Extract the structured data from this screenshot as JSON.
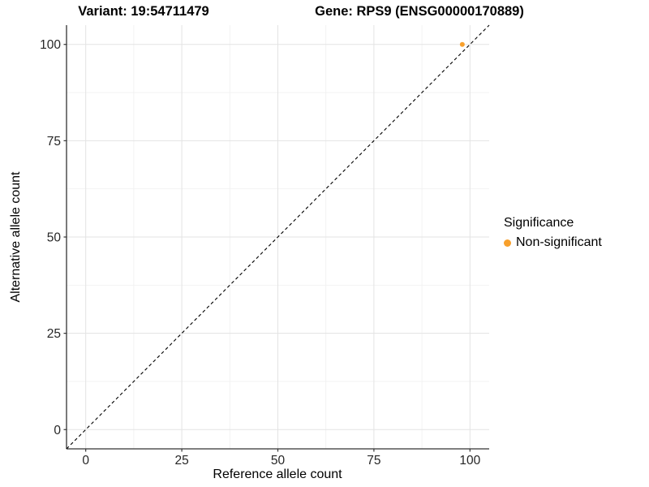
{
  "chart_data": {
    "type": "scatter",
    "title_left": "Variant: 19:54711479",
    "title_right": "Gene: RPS9 (ENSG00000170889)",
    "xlabel": "Reference allele count",
    "ylabel": "Alternative allele count",
    "xlim": [
      -5,
      105
    ],
    "ylim": [
      -5,
      105
    ],
    "xticks": [
      0,
      25,
      50,
      75,
      100
    ],
    "yticks": [
      0,
      25,
      50,
      75,
      100
    ],
    "minor_xticks": [
      12.5,
      37.5,
      62.5,
      87.5
    ],
    "minor_yticks": [
      12.5,
      37.5,
      62.5,
      87.5
    ],
    "grid": true,
    "reference_line": {
      "slope": 1,
      "intercept": 0,
      "style": "dashed",
      "color": "#000000"
    },
    "series": [
      {
        "name": "Non-significant",
        "color": "#F8A02C",
        "points": [
          [
            98,
            100
          ]
        ]
      }
    ],
    "legend": {
      "title": "Significance",
      "position": "right",
      "items": [
        {
          "label": "Non-significant",
          "color": "#F8A02C"
        }
      ]
    },
    "style_colors": {
      "grid_major": "#e3e3e3",
      "grid_minor": "#f1f1f1",
      "axis_line": "#333333",
      "tick_text": "#262626"
    }
  }
}
